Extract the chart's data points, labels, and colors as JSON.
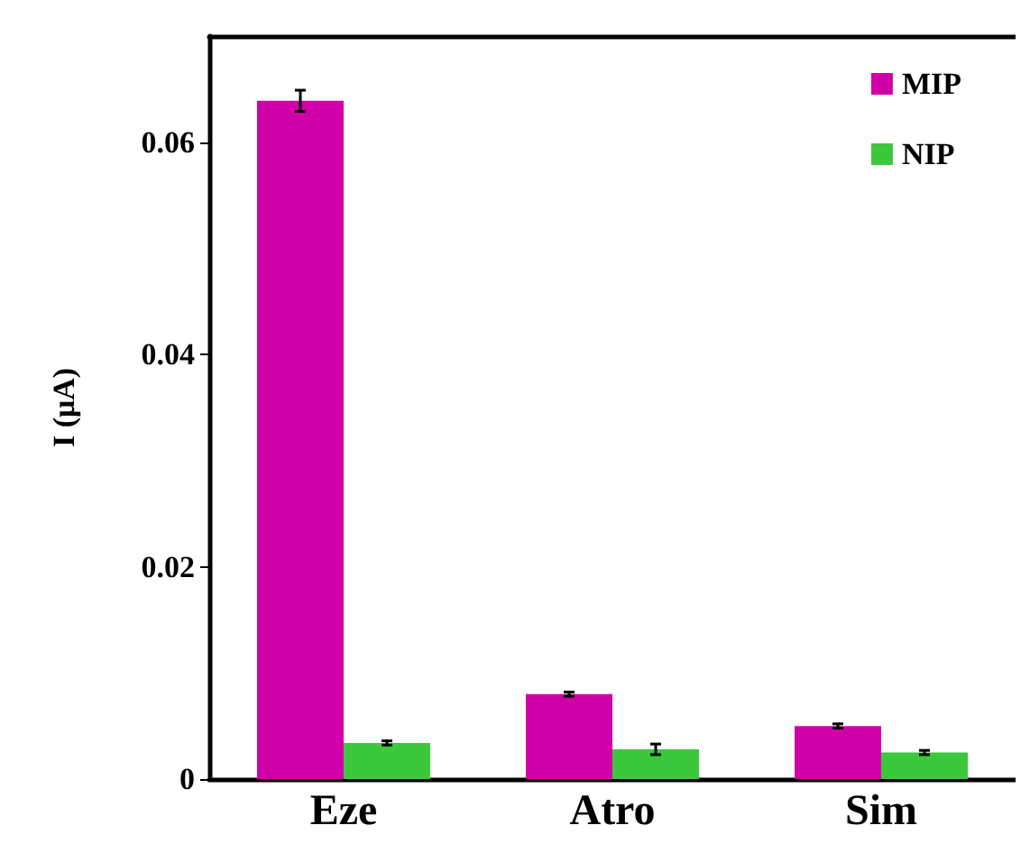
{
  "chart_data": {
    "type": "bar",
    "ylabel": "I (μA)",
    "categories": [
      "Eze",
      "Atro",
      "Sim"
    ],
    "series": [
      {
        "name": "MIP",
        "color": "#d000a8",
        "values": [
          0.0639,
          0.008,
          0.005
        ],
        "errors": [
          0.001,
          0.0002,
          0.0002
        ]
      },
      {
        "name": "NIP",
        "color": "#3cc83c",
        "values": [
          0.0034,
          0.0028,
          0.0025
        ],
        "errors": [
          0.0002,
          0.0005,
          0.0002
        ]
      }
    ],
    "ylim": [
      0,
      0.07
    ],
    "yticks": [
      0,
      0.02,
      0.04,
      0.06
    ],
    "grid": false,
    "legend": "top right"
  }
}
